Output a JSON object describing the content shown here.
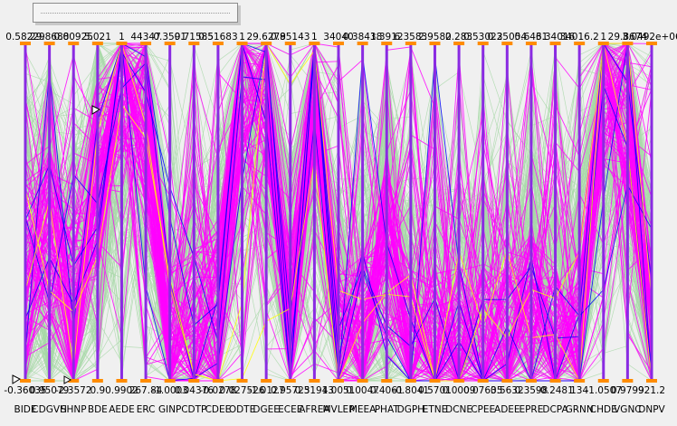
{
  "chart_data": {
    "type": "parallel-coordinates",
    "title": "",
    "axes": [
      {
        "max": "0.58229",
        "min": "-0.36035",
        "label": "BIDE"
      },
      {
        "max": "29.8688",
        "min": "0.95079",
        "label": "CDGVH"
      },
      {
        "max": "0.00925",
        "min": "-2.3572",
        "label": "SHNP"
      },
      {
        "max": "5.021",
        "min": "0.9",
        "label": "BDE"
      },
      {
        "max": "1",
        "min": "0.9902",
        "label": "AEDE"
      },
      {
        "max": "44347",
        "min": "267.84",
        "label": "ERC"
      },
      {
        "max": "0.3591",
        "min": "-1.0003",
        "label": "GINP"
      },
      {
        "max": "0.71585",
        "min": "0.04376",
        "label": "CDTP"
      },
      {
        "max": "0.51683",
        "min": "-0.0278",
        "label": "CDEE"
      },
      {
        "max": "1",
        "min": "0.027526",
        "label": "ODTE"
      },
      {
        "max": "29.6278",
        "min": "-1.0127",
        "label": "DGEE"
      },
      {
        "max": "0.95143",
        "min": "0.95723",
        "label": "ECEE"
      },
      {
        "max": "1",
        "min": "0.51943",
        "label": "AFREA"
      },
      {
        "max": "34040",
        "min": "1.0051",
        "label": "MVLEP"
      },
      {
        "max": "0.38418",
        "min": "0.0047",
        "label": "MEEA"
      },
      {
        "max": "3.3912",
        "min": "0.4061",
        "label": "PHAT"
      },
      {
        "max": "6.3583",
        "min": "-0.8041",
        "label": "DGPH"
      },
      {
        "max": "2.9582",
        "min": "0.5701",
        "label": "ETNE"
      },
      {
        "max": "0.283",
        "min": "0.0009",
        "label": "DCNE"
      },
      {
        "max": "0.53023",
        "min": "0.07635",
        "label": "CPEE"
      },
      {
        "max": "0.25054",
        "min": "0.5632",
        "label": "ADEE"
      },
      {
        "max": "0.6461",
        "min": "0.3598",
        "label": "EPRE"
      },
      {
        "max": "3.34016",
        "min": "-0.2481",
        "label": "DCPA"
      },
      {
        "max": "34016.2",
        "min": "134",
        "label": "GRNN"
      },
      {
        "max": "1",
        "min": "-1.0507",
        "label": "CHDE"
      },
      {
        "max": "29.8674",
        "min": "0.9799",
        "label": "VGNC"
      },
      {
        "max": "3.0492e+06",
        "min": "921.2",
        "label": "DNPV"
      }
    ],
    "series": [
      {
        "color": "#a8d8a8",
        "lines": 220
      },
      {
        "color": "#ff00ff",
        "lines": 90
      },
      {
        "color": "#0000ff",
        "lines": 4
      },
      {
        "color": "#ffff00",
        "lines": 2
      }
    ],
    "grid": false
  }
}
